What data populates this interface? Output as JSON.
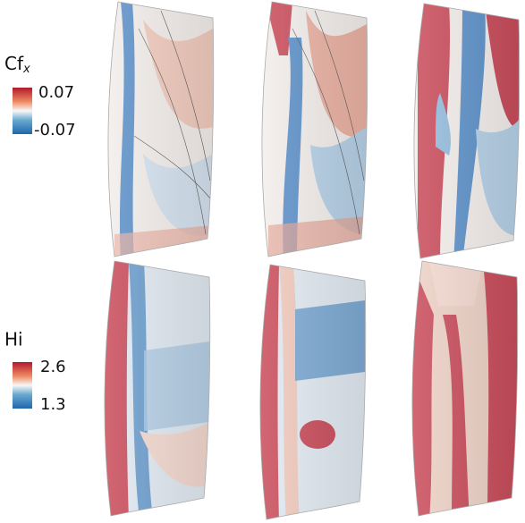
{
  "colorbars": [
    {
      "label": "Cf",
      "subscript": "x",
      "max": "0.07",
      "min": "-0.07"
    },
    {
      "label": "Hi",
      "max": "2.6",
      "min": "1.3"
    }
  ]
}
